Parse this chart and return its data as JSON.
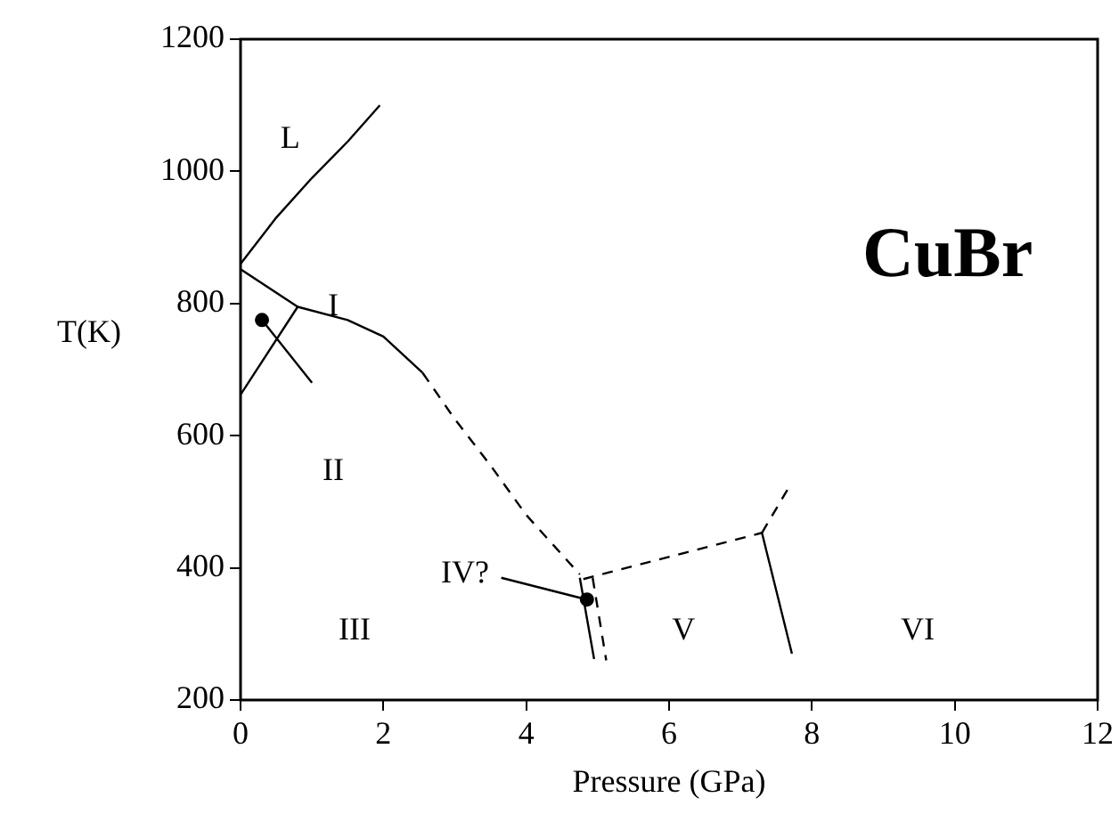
{
  "chart_data": {
    "type": "line",
    "xlabel": "Pressure (GPa)",
    "ylabel": "T(K)",
    "xlim": [
      0,
      12
    ],
    "xticks": [
      0,
      2,
      4,
      6,
      8,
      10,
      12
    ],
    "ylim": [
      200,
      1200
    ],
    "yticks": [
      200,
      400,
      600,
      800,
      1000,
      1200
    ],
    "grid": false,
    "legend": false,
    "marker": "none",
    "line_style": "solid",
    "series": [
      {
        "color": "#000000",
        "x": [
          0,
          0.5,
          1,
          1.5,
          1.95
        ],
        "values": [
          860,
          930,
          990,
          1045,
          1100
        ]
      },
      {
        "color": "#000000",
        "x": [
          0,
          0.8,
          1.5,
          2,
          2.55
        ],
        "values": [
          852,
          795,
          775,
          750,
          695
        ]
      },
      {
        "color": "#000000",
        "line_style": "dashed",
        "x": [
          2.55,
          3,
          3.5,
          4,
          4.5,
          4.75
        ],
        "values": [
          695,
          625,
          555,
          480,
          420,
          390
        ]
      },
      {
        "color": "#000000",
        "x": [
          0,
          0.8
        ],
        "values": [
          662,
          795
        ]
      },
      {
        "color": "#000000",
        "x": [
          0.3,
          1.0
        ],
        "values": [
          775,
          680
        ]
      },
      {
        "color": "#000000",
        "x": [
          3.65,
          4.85
        ],
        "values": [
          385,
          352
        ]
      },
      {
        "color": "#000000",
        "x": [
          4.75,
          4.95
        ],
        "values": [
          385,
          262
        ]
      },
      {
        "color": "#000000",
        "line_style": "dashed",
        "x": [
          4.93,
          5.12
        ],
        "values": [
          385,
          260
        ]
      },
      {
        "color": "#000000",
        "line_style": "dashed",
        "x": [
          4.8,
          7.3
        ],
        "values": [
          383,
          453
        ]
      },
      {
        "color": "#000000",
        "line_style": "dashed",
        "x": [
          7.3,
          7.7
        ],
        "values": [
          453,
          526
        ]
      },
      {
        "color": "#000000",
        "x": [
          7.3,
          7.72
        ],
        "values": [
          453,
          270
        ]
      },
      {
        "type": "scatter",
        "color": "#000000",
        "marker": "circle",
        "x": [
          0.3,
          4.85
        ],
        "values": [
          775,
          352
        ]
      }
    ],
    "annotations": [
      "L",
      "I",
      "II",
      "III",
      "IV?",
      "V",
      "VI",
      "CuBr"
    ]
  }
}
